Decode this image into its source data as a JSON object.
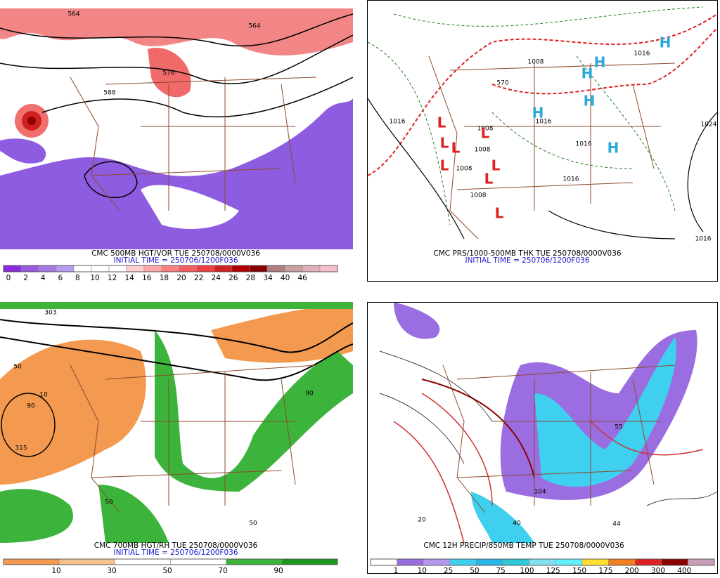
{
  "panels": [
    {
      "caption": "CMC 500MB HGT/VOR TUE 250708/0000V036",
      "initial_time": "INITIAL TIME = 250706/1200F036",
      "colorbar": {
        "colors": [
          "#8a2be2",
          "#9b59e0",
          "#a87ae6",
          "#b89cf0",
          "#ffffff",
          "#ffffff",
          "#ffffff",
          "#ffd0d0",
          "#ffa8a8",
          "#ff8080",
          "#f86060",
          "#ee4040",
          "#d02020",
          "#b00000",
          "#8b0000",
          "#b08080",
          "#c8a0a0",
          "#e0b0b8",
          "#f4c0cc"
        ],
        "labels": [
          "0",
          "2",
          "4",
          "6",
          "8",
          "10",
          "12",
          "14",
          "16",
          "18",
          "20",
          "22",
          "24",
          "26",
          "28",
          "34",
          "40",
          "46"
        ]
      },
      "map_labels": [
        "564",
        "564",
        "576",
        "588"
      ]
    },
    {
      "caption": "CMC PRS/1000-500MB THK TUE 250708/0000V036",
      "initial_time": "INITIAL TIME = 250706/1200F036",
      "map_labels": [
        "1016",
        "1008",
        "570",
        "1016",
        "1024",
        "1008",
        "1008",
        "1008",
        "1008",
        "1016",
        "1016",
        "1016",
        "1016",
        "L",
        "L",
        "L",
        "L",
        "L",
        "L",
        "L",
        "L",
        "H",
        "H",
        "H",
        "H",
        "H",
        "H"
      ]
    },
    {
      "caption": "CMC 700MB HGT/RH TUE 250708/0000V036",
      "initial_time": "INITIAL TIME = 250706/1200F036",
      "colorbar": {
        "colors": [
          "#f39a50",
          "#f6c08c",
          "#ffffff",
          "#ffffff",
          "#3cb43c",
          "#1e961e"
        ],
        "labels": [
          "10",
          "30",
          "50",
          "70",
          "90"
        ]
      },
      "map_labels": [
        "303",
        "50",
        "90",
        "315",
        "10",
        "50",
        "50",
        "90"
      ]
    },
    {
      "caption": "CMC 12H PRECIP/850MB TEMP TUE 250708/0000V036",
      "colorbar": {
        "colors": [
          "#ffffff",
          "#9a6ee0",
          "#b596ef",
          "#3fd0f0",
          "#28b8e8",
          "#30c8d8",
          "#80e0f0",
          "#60f0ff",
          "#ffe030",
          "#f08020",
          "#e02020",
          "#8b0000",
          "#c8a0b8"
        ],
        "labels": [
          "1",
          "10",
          "25",
          "50",
          "75",
          "100",
          "125",
          "150",
          "175",
          "200",
          "300",
          "400"
        ]
      },
      "map_labels": [
        "44",
        "55",
        "104",
        "40",
        "20"
      ]
    }
  ]
}
